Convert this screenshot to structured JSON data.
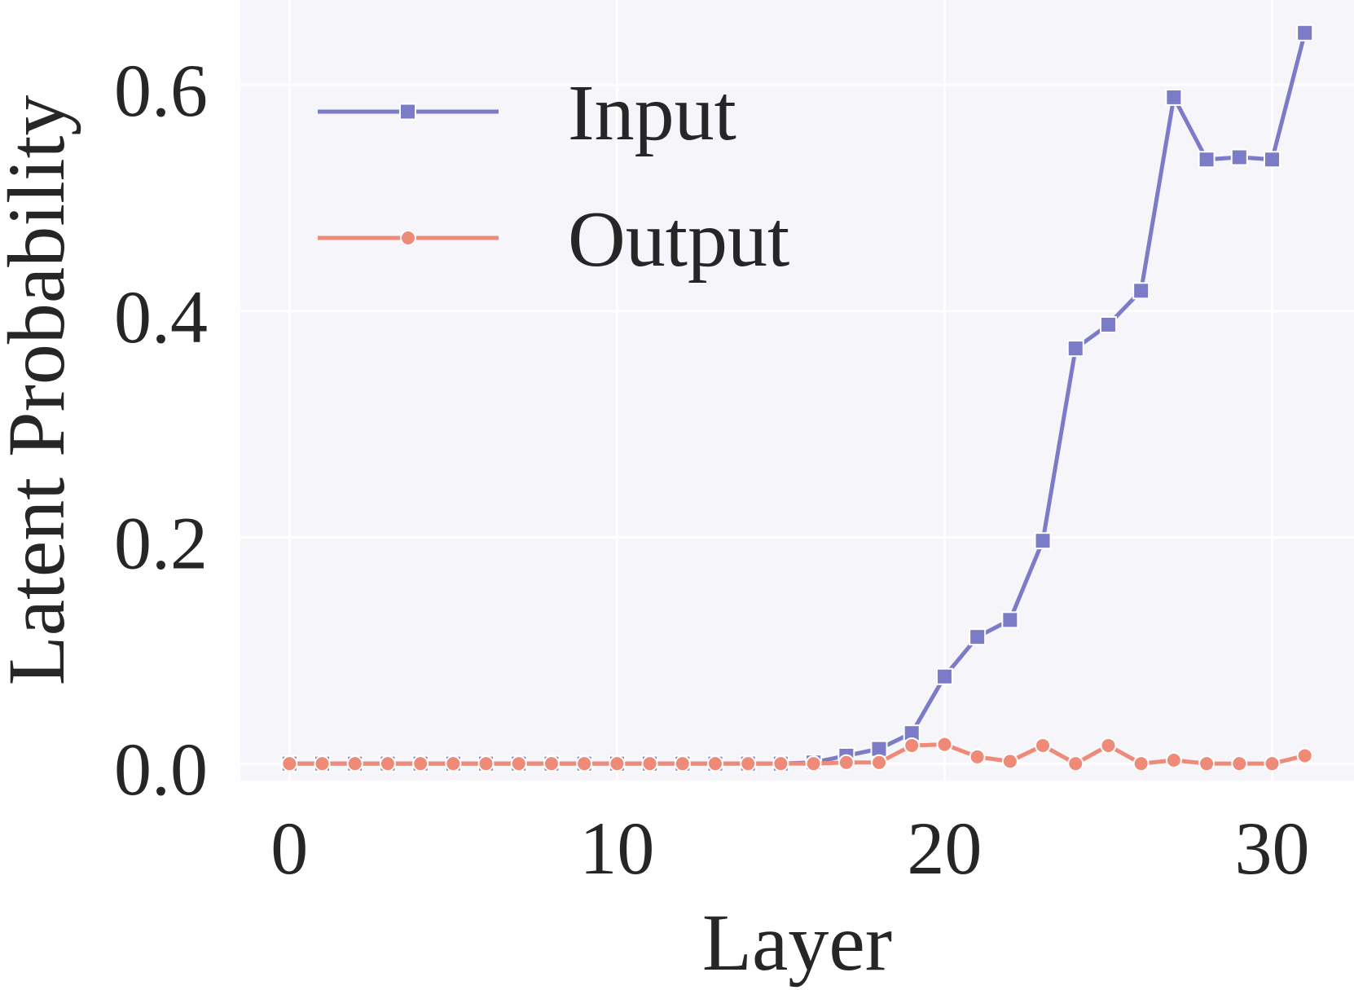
{
  "chart_data": {
    "type": "line",
    "title": "",
    "xlabel": "Layer",
    "ylabel": "Latent Probability",
    "xlim": [
      -1.5,
      32.5
    ],
    "ylim": [
      -0.015,
      0.675
    ],
    "xticks": [
      0,
      10,
      20,
      30
    ],
    "xtick_labels": [
      "0",
      "10",
      "20",
      "30"
    ],
    "yticks": [
      0.0,
      0.2,
      0.4,
      0.6
    ],
    "ytick_labels": [
      "0.0",
      "0.2",
      "0.4",
      "0.6"
    ],
    "grid": true,
    "legend_position": "top-left",
    "background_color": "#f5f5fa",
    "grid_color": "#ffffff",
    "x": [
      0,
      1,
      2,
      3,
      4,
      5,
      6,
      7,
      8,
      9,
      10,
      11,
      12,
      13,
      14,
      15,
      16,
      17,
      18,
      19,
      20,
      21,
      22,
      23,
      24,
      25,
      26,
      27,
      28,
      29,
      30,
      31
    ],
    "series": [
      {
        "name": "Input",
        "color": "#7b7bc8",
        "marker": "square",
        "values": [
          0.0,
          0.0,
          0.0,
          0.0,
          0.0,
          0.0,
          0.0,
          0.0,
          0.0,
          0.0,
          0.0,
          0.0,
          0.0,
          0.0,
          0.0,
          0.0,
          0.001,
          0.007,
          0.013,
          0.027,
          0.077,
          0.112,
          0.127,
          0.197,
          0.367,
          0.388,
          0.418,
          0.589,
          0.534,
          0.536,
          0.534,
          0.646
        ]
      },
      {
        "name": "Output",
        "color": "#f08a78",
        "marker": "circle",
        "values": [
          0.0,
          0.0,
          0.0,
          0.0,
          0.0,
          0.0,
          0.0,
          0.0,
          0.0,
          0.0,
          0.0,
          0.0,
          0.0,
          0.0,
          0.0,
          0.0,
          0.0,
          0.001,
          0.001,
          0.016,
          0.017,
          0.006,
          0.002,
          0.016,
          0.0,
          0.016,
          0.0,
          0.003,
          0.0,
          0.0,
          0.0,
          0.007
        ]
      }
    ]
  }
}
